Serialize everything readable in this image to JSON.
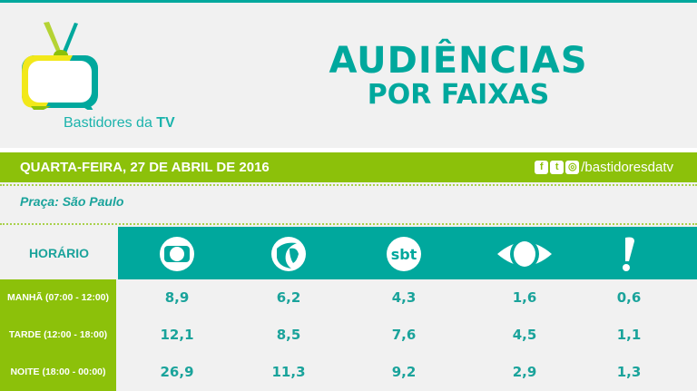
{
  "brand": {
    "name": "Bastidores da ",
    "name_bold": "TV"
  },
  "title": {
    "line1": "AUDIÊNCIAS",
    "line2": "POR FAIXAS"
  },
  "date": "QUARTA-FEIRA, 27 DE ABRIL DE 2016",
  "social": {
    "handle": "/bastidoresdatv",
    "icons": [
      "facebook-icon",
      "twitter-icon",
      "instagram-icon"
    ]
  },
  "praca": "Praça: São Paulo",
  "table": {
    "header": "HORÁRIO",
    "channels": [
      "Globo",
      "Record",
      "SBT",
      "Band",
      "RedeTV!"
    ],
    "rows": [
      {
        "label": "MANHÃ (07:00 - 12:00)",
        "values": [
          "8,9",
          "6,2",
          "4,3",
          "1,6",
          "0,6"
        ]
      },
      {
        "label": "TARDE (12:00 - 18:00)",
        "values": [
          "12,1",
          "8,5",
          "7,6",
          "4,5",
          "1,1"
        ]
      },
      {
        "label": "NOITE (18:00 - 00:00)",
        "values": [
          "26,9",
          "11,3",
          "9,2",
          "2,9",
          "1,3"
        ]
      }
    ]
  },
  "colors": {
    "teal": "#00a89d",
    "green": "#8cc10a",
    "background": "#f1f1f1"
  }
}
